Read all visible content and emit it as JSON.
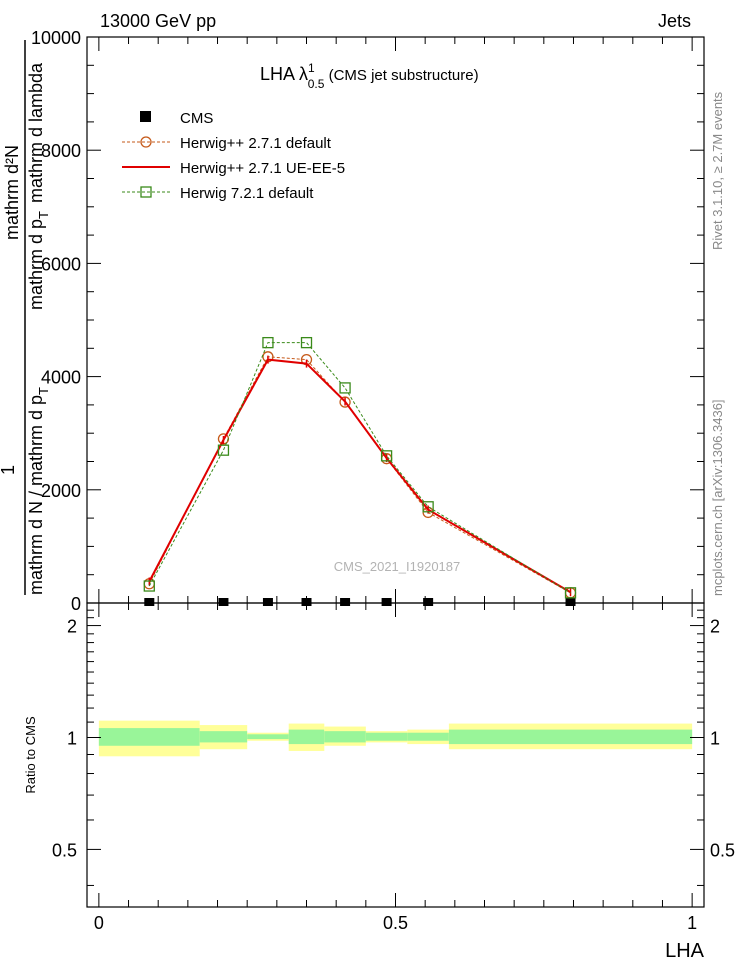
{
  "header": {
    "left": "13000 GeV pp",
    "right": "Jets"
  },
  "plot_title": {
    "main": "LHA λ",
    "sup": "1",
    "sub": "0.5",
    "rest": " (CMS jet substructure)"
  },
  "side_labels": {
    "rivet": "Rivet 3.1.10, ≥ 2.7M events",
    "mcplots": "mcplots.cern.ch [arXiv:1306.3436]"
  },
  "watermark": "CMS_2021_I1920187",
  "ylabel_top": {
    "num_one": "1",
    "num_rest": "mathrm d²N",
    "den_left": "mathrm d N / mathrm d p",
    "den_left_sub": "T",
    "den_right": "mathrm d p",
    "den_right_sub": "T",
    "den_right_tail": "mathrm d lambda"
  },
  "ylabel_ratio": "Ratio to CMS",
  "xlabel": "LHA",
  "colors": {
    "cms": "#000000",
    "herwigpp_default": "#c65a1a",
    "herwigpp_ueee5": "#e00000",
    "herwig7": "#3a8a1a",
    "band_inner": "#99f599",
    "band_outer": "#ffff99"
  },
  "chart_data": [
    {
      "type": "line",
      "title": "LHA λ^1_0.5 (CMS jet substructure)",
      "xlim": [
        -0.02,
        1.02
      ],
      "ylim": [
        0,
        10000
      ],
      "y_ticks": [
        "0",
        "2000",
        "4000",
        "6000",
        "8000",
        "10000"
      ],
      "legend": {
        "placement": "top-left",
        "entries": [
          "CMS",
          "Herwig++ 2.7.1 default",
          "Herwig++ 2.7.1 UE-EE-5",
          "Herwig 7.2.1 default"
        ]
      },
      "series": [
        {
          "name": "CMS",
          "style": "square-marker",
          "color": "#000000",
          "x": [
            0.085,
            0.21,
            0.285,
            0.35,
            0.415,
            0.485,
            0.555,
            0.795
          ],
          "y": [
            0,
            0,
            0,
            0,
            0,
            0,
            0,
            0
          ]
        },
        {
          "name": "Herwig++ 2.7.1 default",
          "style": "dashed-circle",
          "color": "#c65a1a",
          "x": [
            0.085,
            0.21,
            0.285,
            0.35,
            0.415,
            0.485,
            0.555,
            0.795
          ],
          "y": [
            340,
            2900,
            4350,
            4300,
            3550,
            2550,
            1600,
            180
          ]
        },
        {
          "name": "Herwig++ 2.7.1 UE-EE-5",
          "style": "solid",
          "color": "#e00000",
          "x": [
            0.085,
            0.21,
            0.285,
            0.35,
            0.415,
            0.485,
            0.555,
            0.795
          ],
          "y": [
            380,
            2880,
            4300,
            4230,
            3560,
            2560,
            1650,
            190
          ]
        },
        {
          "name": "Herwig 7.2.1 default",
          "style": "dashed-square",
          "color": "#3a8a1a",
          "x": [
            0.085,
            0.21,
            0.285,
            0.35,
            0.415,
            0.485,
            0.555,
            0.795
          ],
          "y": [
            300,
            2700,
            4600,
            4600,
            3800,
            2600,
            1700,
            180
          ]
        }
      ]
    },
    {
      "type": "area",
      "title": "Ratio to CMS",
      "xlabel": "LHA",
      "ylabel": "Ratio to CMS",
      "xlim": [
        -0.02,
        1.02
      ],
      "ylim": [
        0.35,
        2.3
      ],
      "x_ticks": [
        "0",
        "0.5",
        "1"
      ],
      "y_ticks": [
        "0.5",
        "1",
        "2"
      ],
      "bins": [
        {
          "x0": 0.0,
          "x1": 0.17,
          "inner": [
            0.95,
            1.06
          ],
          "outer": [
            0.89,
            1.11
          ]
        },
        {
          "x0": 0.17,
          "x1": 0.25,
          "inner": [
            0.97,
            1.04
          ],
          "outer": [
            0.93,
            1.08
          ]
        },
        {
          "x0": 0.25,
          "x1": 0.32,
          "inner": [
            0.99,
            1.02
          ],
          "outer": [
            0.98,
            1.03
          ]
        },
        {
          "x0": 0.32,
          "x1": 0.38,
          "inner": [
            0.96,
            1.05
          ],
          "outer": [
            0.92,
            1.09
          ]
        },
        {
          "x0": 0.38,
          "x1": 0.45,
          "inner": [
            0.97,
            1.04
          ],
          "outer": [
            0.95,
            1.07
          ]
        },
        {
          "x0": 0.45,
          "x1": 0.52,
          "inner": [
            0.98,
            1.03
          ],
          "outer": [
            0.97,
            1.04
          ]
        },
        {
          "x0": 0.52,
          "x1": 0.59,
          "inner": [
            0.98,
            1.03
          ],
          "outer": [
            0.96,
            1.05
          ]
        },
        {
          "x0": 0.59,
          "x1": 1.0,
          "inner": [
            0.96,
            1.05
          ],
          "outer": [
            0.93,
            1.09
          ]
        }
      ]
    }
  ]
}
